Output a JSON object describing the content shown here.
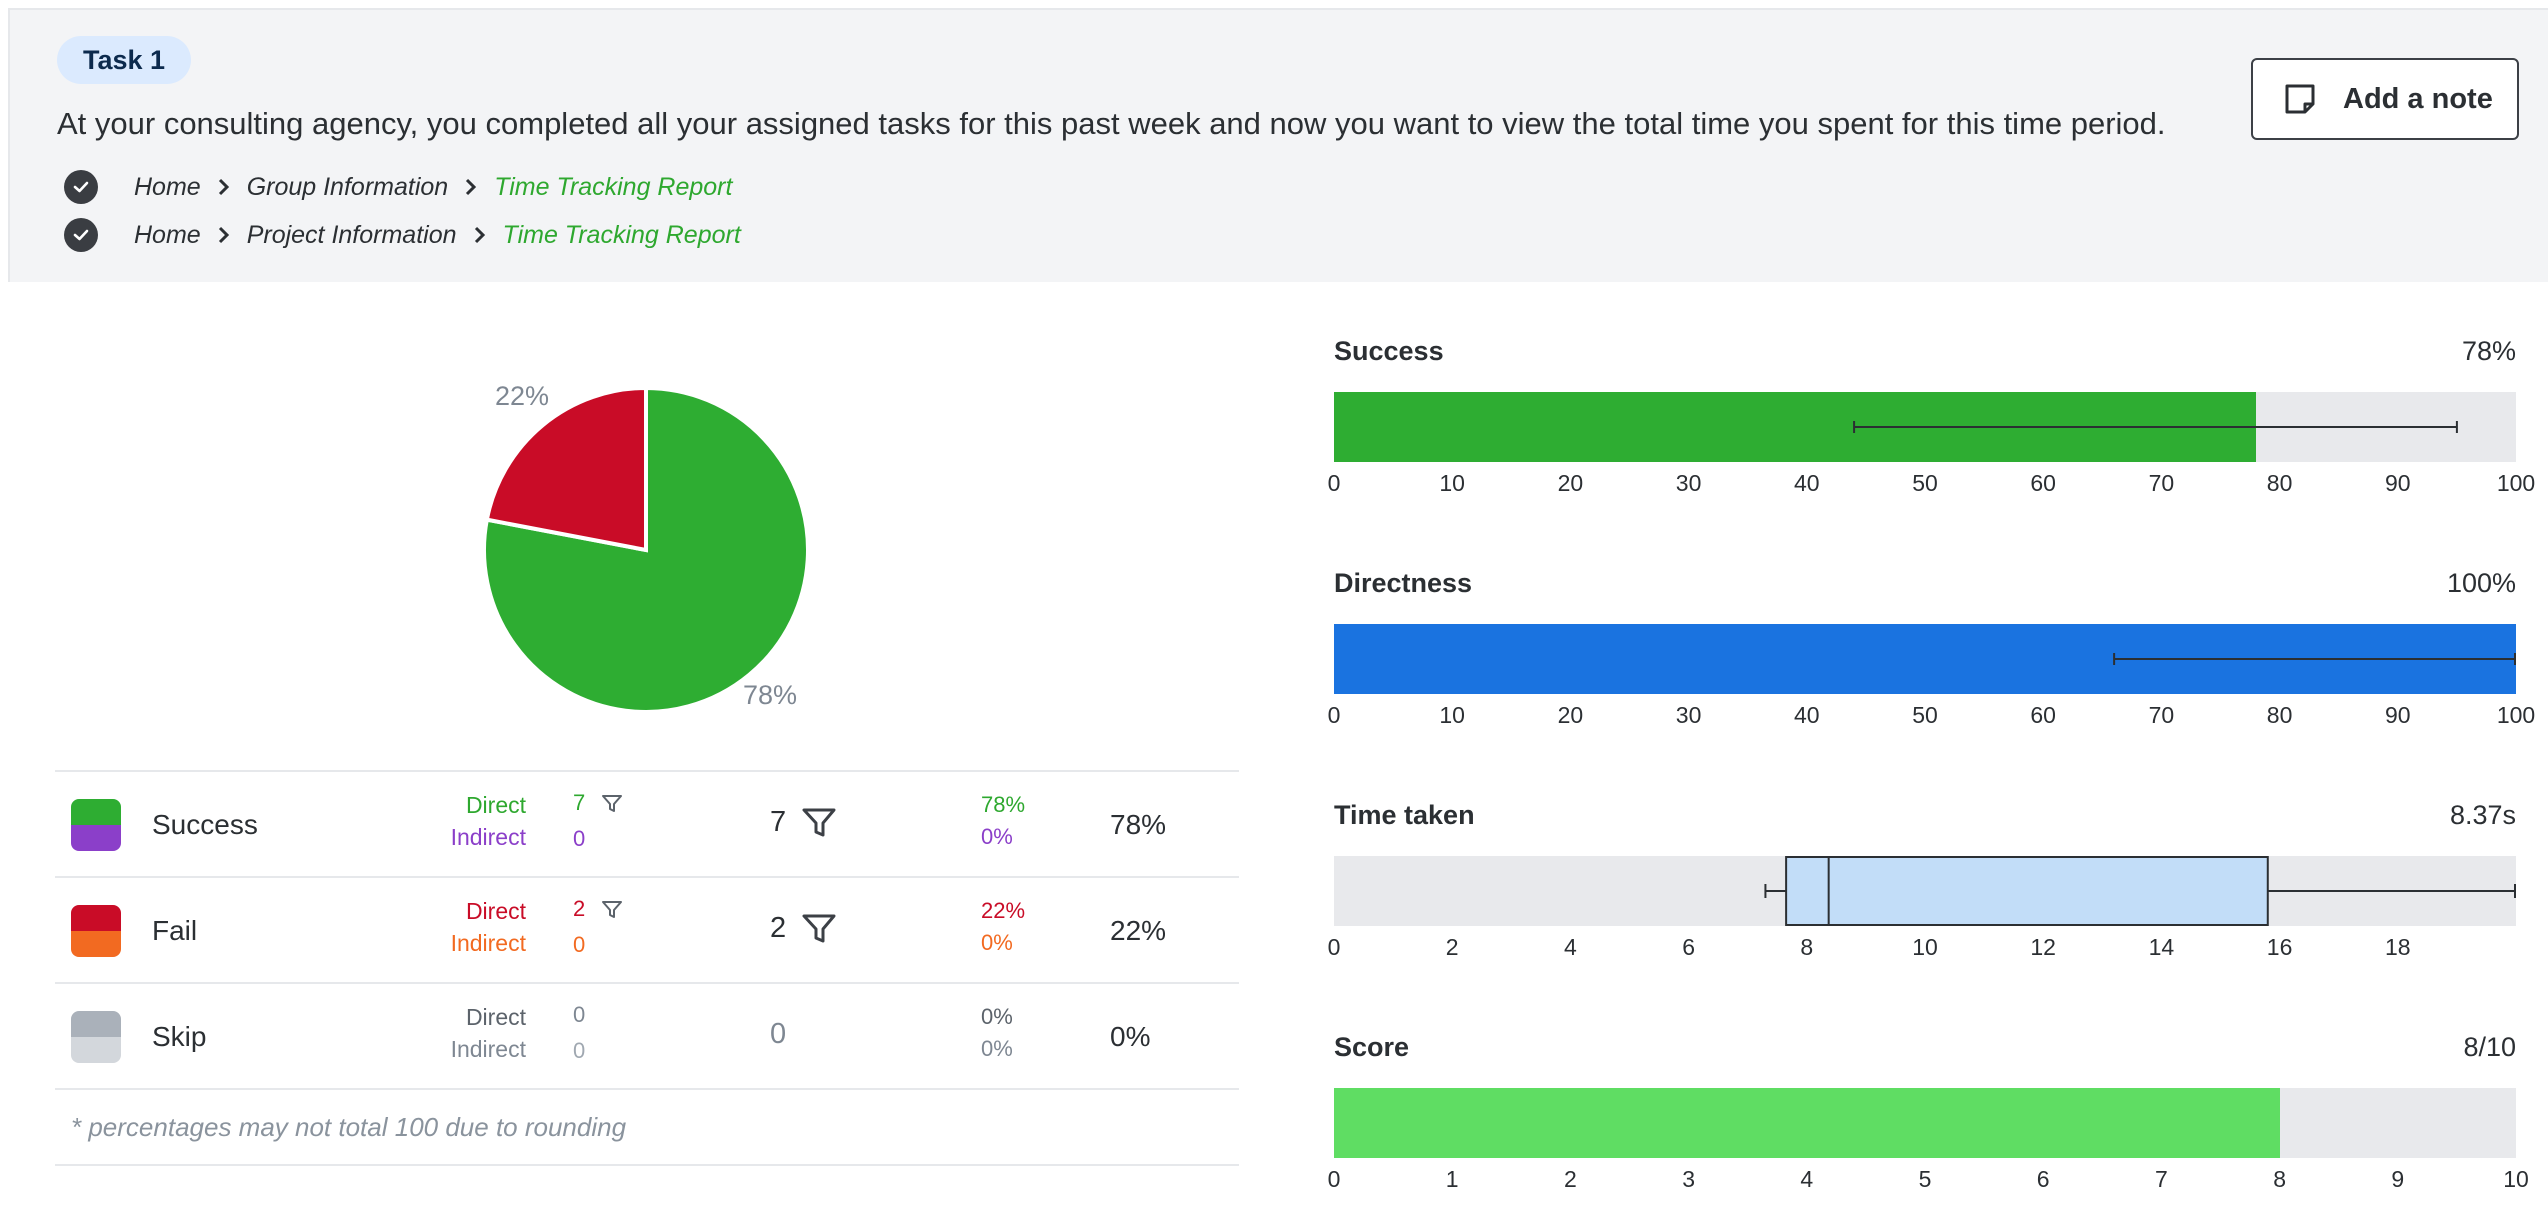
{
  "header": {
    "task_badge": "Task 1",
    "description": "At your consulting agency, you completed all your assigned tasks for this past week and now you want to view the total time you spent for this time period.",
    "add_note_label": "Add a note",
    "paths": [
      {
        "items": [
          "Home",
          "Group Information"
        ],
        "final": "Time Tracking Report"
      },
      {
        "items": [
          "Home",
          "Project Information"
        ],
        "final": "Time Tracking Report"
      }
    ]
  },
  "pie": {
    "labels": {
      "fail": "22%",
      "success": "78%"
    },
    "slices": [
      {
        "name": "Success",
        "percent": 78,
        "color": "#2ead32"
      },
      {
        "name": "Fail",
        "percent": 22,
        "color": "#c90c27"
      }
    ]
  },
  "results": {
    "rows": [
      {
        "label": "Success",
        "direct_label": "Direct",
        "indirect_label": "Indirect",
        "direct_count": "7",
        "indirect_count": "0",
        "total": "7",
        "direct_pct": "78%",
        "indirect_pct": "0%",
        "overall": "78%",
        "top_color": "#2ead32",
        "bottom_color": "#8b3fc9",
        "direct_color": "#2ea82f",
        "indirect_color": "#8b3fc9",
        "has_filter": true
      },
      {
        "label": "Fail",
        "direct_label": "Direct",
        "indirect_label": "Indirect",
        "direct_count": "2",
        "indirect_count": "0",
        "total": "2",
        "direct_pct": "22%",
        "indirect_pct": "0%",
        "overall": "22%",
        "top_color": "#c90c27",
        "bottom_color": "#f26a21",
        "direct_color": "#c90c27",
        "indirect_color": "#f26a21",
        "has_filter": true
      },
      {
        "label": "Skip",
        "direct_label": "Direct",
        "indirect_label": "Indirect",
        "direct_count": "0",
        "indirect_count": "0",
        "total": "0",
        "direct_pct": "0%",
        "indirect_pct": "0%",
        "overall": "0%",
        "top_color": "#aab1ba",
        "bottom_color": "#d3d7dc",
        "direct_color": "#5c636b",
        "indirect_color": "#7e8792",
        "has_filter": false
      }
    ],
    "footnote": "* percentages may not total 100 due to rounding"
  },
  "metrics": {
    "success": {
      "title": "Success",
      "value": "78%",
      "fill_value": 78,
      "ci": [
        44,
        95
      ],
      "color": "#2ead32",
      "ticks": [
        "0",
        "10",
        "20",
        "30",
        "40",
        "50",
        "60",
        "70",
        "80",
        "90",
        "100"
      ]
    },
    "directness": {
      "title": "Directness",
      "value": "100%",
      "fill_value": 100,
      "ci": [
        66,
        100
      ],
      "color": "#1a73e0",
      "ticks": [
        "0",
        "10",
        "20",
        "30",
        "40",
        "50",
        "60",
        "70",
        "80",
        "90",
        "100"
      ]
    },
    "time_taken": {
      "title": "Time taken",
      "value": "8.37s",
      "axis_max": 20,
      "box": {
        "whisker_low": 7.3,
        "q1": 7.65,
        "median": 8.37,
        "q3": 15.8,
        "whisker_high": 20
      },
      "box_color": "#c2ddf8",
      "ticks": [
        "0",
        "2",
        "4",
        "6",
        "8",
        "10",
        "12",
        "14",
        "16",
        "18"
      ]
    },
    "score": {
      "title": "Score",
      "value": "8/10",
      "fill_value": 8,
      "axis_max": 10,
      "color": "#5fdd63",
      "ticks": [
        "0",
        "1",
        "2",
        "3",
        "4",
        "5",
        "6",
        "7",
        "8",
        "9",
        "10"
      ]
    }
  }
}
